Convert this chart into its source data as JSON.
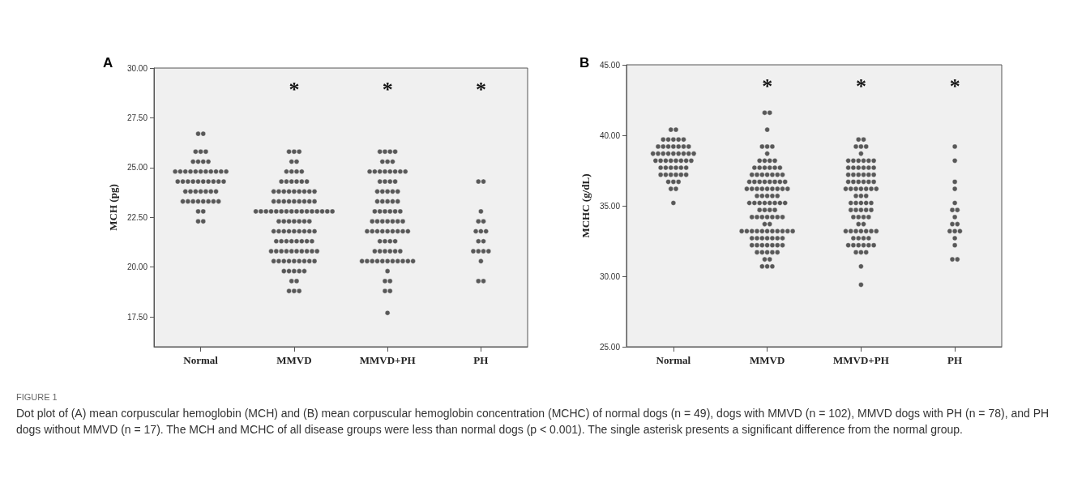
{
  "chart_data": [
    {
      "type": "scatter",
      "title": "A",
      "ylabel": "MCH (pg)",
      "categories": [
        "Normal",
        "MMVD",
        "MMVD+PH",
        "PH"
      ],
      "marker": "circle",
      "grid": false,
      "ylim": [
        16,
        30
      ],
      "yticks": [
        {
          "value": 17.5,
          "label": "17.50"
        },
        {
          "value": 20,
          "label": "20.00"
        },
        {
          "value": 22.5,
          "label": "22.50"
        },
        {
          "value": 25,
          "label": "25.00"
        },
        {
          "value": 27.5,
          "label": "27.50"
        },
        {
          "value": 30,
          "label": "30.00"
        }
      ],
      "series": [
        {
          "color": "#333333",
          "x": [
            "Normal",
            "Normal",
            "Normal",
            "Normal",
            "Normal",
            "Normal",
            "Normal",
            "Normal",
            "Normal",
            "Normal",
            "Normal",
            "Normal",
            "Normal",
            "Normal",
            "Normal",
            "Normal",
            "Normal",
            "Normal",
            "Normal",
            "Normal",
            "Normal",
            "Normal",
            "Normal",
            "Normal",
            "Normal",
            "Normal",
            "Normal",
            "Normal",
            "Normal",
            "Normal",
            "Normal",
            "Normal",
            "Normal",
            "Normal",
            "Normal",
            "Normal",
            "Normal",
            "Normal",
            "Normal",
            "Normal",
            "Normal",
            "Normal",
            "Normal",
            "Normal",
            "Normal",
            "Normal",
            "Normal",
            "Normal",
            "Normal"
          ],
          "values": [
            26.7,
            26.7,
            25.8,
            25.8,
            25.8,
            25.3,
            25.3,
            25.3,
            25.3,
            24.8,
            24.8,
            24.8,
            24.8,
            24.8,
            24.8,
            24.8,
            24.8,
            24.8,
            24.8,
            24.8,
            24.3,
            24.3,
            24.3,
            24.3,
            24.3,
            24.3,
            24.3,
            24.3,
            24.3,
            24.3,
            23.8,
            23.8,
            23.8,
            23.8,
            23.8,
            23.8,
            23.8,
            23.3,
            23.3,
            23.3,
            23.3,
            23.3,
            23.3,
            23.3,
            23.3,
            22.8,
            22.8,
            22.3,
            22.3
          ]
        },
        {
          "color": "#333333",
          "x": [
            "MMVD",
            "MMVD",
            "MMVD",
            "MMVD",
            "MMVD",
            "MMVD",
            "MMVD",
            "MMVD",
            "MMVD",
            "MMVD",
            "MMVD",
            "MMVD",
            "MMVD",
            "MMVD",
            "MMVD",
            "MMVD",
            "MMVD",
            "MMVD",
            "MMVD",
            "MMVD",
            "MMVD",
            "MMVD",
            "MMVD",
            "MMVD",
            "MMVD",
            "MMVD",
            "MMVD",
            "MMVD",
            "MMVD",
            "MMVD",
            "MMVD",
            "MMVD",
            "MMVD",
            "MMVD",
            "MMVD",
            "MMVD",
            "MMVD",
            "MMVD",
            "MMVD",
            "MMVD",
            "MMVD",
            "MMVD",
            "MMVD",
            "MMVD",
            "MMVD",
            "MMVD",
            "MMVD",
            "MMVD",
            "MMVD",
            "MMVD",
            "MMVD",
            "MMVD",
            "MMVD",
            "MMVD",
            "MMVD",
            "MMVD",
            "MMVD",
            "MMVD",
            "MMVD",
            "MMVD",
            "MMVD",
            "MMVD",
            "MMVD",
            "MMVD",
            "MMVD",
            "MMVD",
            "MMVD",
            "MMVD",
            "MMVD",
            "MMVD",
            "MMVD",
            "MMVD",
            "MMVD",
            "MMVD",
            "MMVD",
            "MMVD",
            "MMVD",
            "MMVD",
            "MMVD",
            "MMVD",
            "MMVD",
            "MMVD",
            "MMVD",
            "MMVD",
            "MMVD",
            "MMVD",
            "MMVD",
            "MMVD",
            "MMVD",
            "MMVD",
            "MMVD",
            "MMVD",
            "MMVD",
            "MMVD",
            "MMVD",
            "MMVD",
            "MMVD",
            "MMVD",
            "MMVD",
            "MMVD",
            "MMVD",
            "MMVD"
          ],
          "values": [
            25.8,
            25.8,
            25.8,
            25.3,
            25.3,
            24.8,
            24.8,
            24.8,
            24.8,
            24.3,
            24.3,
            24.3,
            24.3,
            24.3,
            24.3,
            23.8,
            23.8,
            23.8,
            23.8,
            23.8,
            23.8,
            23.8,
            23.8,
            23.8,
            23.3,
            23.3,
            23.3,
            23.3,
            23.3,
            23.3,
            23.3,
            23.3,
            23.3,
            22.8,
            22.8,
            22.8,
            22.8,
            22.8,
            22.8,
            22.8,
            22.8,
            22.8,
            22.8,
            22.8,
            22.8,
            22.8,
            22.8,
            22.8,
            22.8,
            22.3,
            22.3,
            22.3,
            22.3,
            22.3,
            22.3,
            22.3,
            21.8,
            21.8,
            21.8,
            21.8,
            21.8,
            21.8,
            21.8,
            21.8,
            21.8,
            21.3,
            21.3,
            21.3,
            21.3,
            21.3,
            21.3,
            21.3,
            21.3,
            20.8,
            20.8,
            20.8,
            20.8,
            20.8,
            20.8,
            20.8,
            20.8,
            20.8,
            20.8,
            20.3,
            20.3,
            20.3,
            20.3,
            20.3,
            20.3,
            20.3,
            20.3,
            20.3,
            19.8,
            19.8,
            19.8,
            19.8,
            19.8,
            19.3,
            19.3,
            18.8,
            18.8,
            18.8
          ]
        },
        {
          "color": "#333333",
          "x": [
            "MMVD+PH",
            "MMVD+PH",
            "MMVD+PH",
            "MMVD+PH",
            "MMVD+PH",
            "MMVD+PH",
            "MMVD+PH",
            "MMVD+PH",
            "MMVD+PH",
            "MMVD+PH",
            "MMVD+PH",
            "MMVD+PH",
            "MMVD+PH",
            "MMVD+PH",
            "MMVD+PH",
            "MMVD+PH",
            "MMVD+PH",
            "MMVD+PH",
            "MMVD+PH",
            "MMVD+PH",
            "MMVD+PH",
            "MMVD+PH",
            "MMVD+PH",
            "MMVD+PH",
            "MMVD+PH",
            "MMVD+PH",
            "MMVD+PH",
            "MMVD+PH",
            "MMVD+PH",
            "MMVD+PH",
            "MMVD+PH",
            "MMVD+PH",
            "MMVD+PH",
            "MMVD+PH",
            "MMVD+PH",
            "MMVD+PH",
            "MMVD+PH",
            "MMVD+PH",
            "MMVD+PH",
            "MMVD+PH",
            "MMVD+PH",
            "MMVD+PH",
            "MMVD+PH",
            "MMVD+PH",
            "MMVD+PH",
            "MMVD+PH",
            "MMVD+PH",
            "MMVD+PH",
            "MMVD+PH",
            "MMVD+PH",
            "MMVD+PH",
            "MMVD+PH",
            "MMVD+PH",
            "MMVD+PH",
            "MMVD+PH",
            "MMVD+PH",
            "MMVD+PH",
            "MMVD+PH",
            "MMVD+PH",
            "MMVD+PH",
            "MMVD+PH",
            "MMVD+PH",
            "MMVD+PH",
            "MMVD+PH",
            "MMVD+PH",
            "MMVD+PH",
            "MMVD+PH",
            "MMVD+PH",
            "MMVD+PH",
            "MMVD+PH",
            "MMVD+PH",
            "MMVD+PH",
            "MMVD+PH",
            "MMVD+PH",
            "MMVD+PH",
            "MMVD+PH",
            "MMVD+PH",
            "MMVD+PH"
          ],
          "values": [
            25.8,
            25.8,
            25.8,
            25.8,
            25.3,
            25.3,
            25.3,
            24.8,
            24.8,
            24.8,
            24.8,
            24.8,
            24.8,
            24.8,
            24.8,
            24.3,
            24.3,
            24.3,
            24.3,
            23.8,
            23.8,
            23.8,
            23.8,
            23.8,
            23.3,
            23.3,
            23.3,
            23.3,
            23.3,
            22.8,
            22.8,
            22.8,
            22.8,
            22.8,
            22.8,
            22.3,
            22.3,
            22.3,
            22.3,
            22.3,
            22.3,
            22.3,
            21.8,
            21.8,
            21.8,
            21.8,
            21.8,
            21.8,
            21.8,
            21.8,
            21.8,
            21.3,
            21.3,
            21.3,
            21.3,
            20.8,
            20.8,
            20.8,
            20.8,
            20.8,
            20.8,
            20.3,
            20.3,
            20.3,
            20.3,
            20.3,
            20.3,
            20.3,
            20.3,
            20.3,
            20.3,
            20.3,
            19.8,
            19.3,
            19.3,
            18.8,
            18.8,
            17.7
          ]
        },
        {
          "color": "#333333",
          "x": [
            "PH",
            "PH",
            "PH",
            "PH",
            "PH",
            "PH",
            "PH",
            "PH",
            "PH",
            "PH",
            "PH",
            "PH",
            "PH",
            "PH",
            "PH",
            "PH",
            "PH"
          ],
          "values": [
            24.3,
            24.3,
            22.8,
            22.3,
            22.3,
            21.8,
            21.8,
            21.8,
            21.3,
            21.3,
            20.8,
            20.8,
            20.8,
            20.8,
            20.3,
            19.3,
            19.3
          ]
        }
      ],
      "annotations": [
        "*",
        "*",
        "*",
        "FIGURE 1",
        "Dot plot of (A) mean corpuscular hemoglobin (MCH) and (B) mean corpuscular hemoglobin concentration (MCHC) of normal dogs (n = 49), dogs with MMVD (n = 102), MMVD dogs with PH (n = 78), and PH dogs without MMVD (n = 17). The MCH and MCHC of all disease groups were less than normal dogs (p < 0.001). The single asterisk presents a significant difference from the normal group."
      ]
    },
    {
      "type": "scatter",
      "title": "B",
      "ylabel": "MCHC (g/dL)",
      "categories": [
        "Normal",
        "MMVD",
        "MMVD+PH",
        "PH"
      ],
      "marker": "circle",
      "grid": false,
      "ylim": [
        25,
        45
      ],
      "yticks": [
        {
          "value": 25,
          "label": "25.00"
        },
        {
          "value": 30,
          "label": "30.00"
        },
        {
          "value": 35,
          "label": "35.00"
        },
        {
          "value": 40,
          "label": "40.00"
        },
        {
          "value": 45,
          "label": "45.00"
        }
      ],
      "series": [
        {
          "color": "#333333",
          "x": [
            "Normal",
            "Normal",
            "Normal",
            "Normal",
            "Normal",
            "Normal",
            "Normal",
            "Normal",
            "Normal",
            "Normal",
            "Normal",
            "Normal",
            "Normal",
            "Normal",
            "Normal",
            "Normal",
            "Normal",
            "Normal",
            "Normal",
            "Normal",
            "Normal",
            "Normal",
            "Normal",
            "Normal",
            "Normal",
            "Normal",
            "Normal",
            "Normal",
            "Normal",
            "Normal",
            "Normal",
            "Normal",
            "Normal",
            "Normal",
            "Normal",
            "Normal",
            "Normal",
            "Normal",
            "Normal",
            "Normal",
            "Normal",
            "Normal",
            "Normal",
            "Normal",
            "Normal",
            "Normal",
            "Normal",
            "Normal",
            "Normal"
          ],
          "values": [
            40.4,
            40.4,
            39.7,
            39.7,
            39.7,
            39.7,
            39.7,
            39.2,
            39.2,
            39.2,
            39.2,
            39.2,
            39.2,
            39.2,
            38.7,
            38.7,
            38.7,
            38.7,
            38.7,
            38.7,
            38.7,
            38.7,
            38.7,
            38.2,
            38.2,
            38.2,
            38.2,
            38.2,
            38.2,
            38.2,
            38.2,
            37.7,
            37.7,
            37.7,
            37.7,
            37.7,
            37.7,
            37.2,
            37.2,
            37.2,
            37.2,
            37.2,
            37.2,
            36.7,
            36.7,
            36.7,
            36.2,
            36.2,
            35.2
          ]
        },
        {
          "color": "#333333",
          "x": [
            "MMVD",
            "MMVD",
            "MMVD",
            "MMVD",
            "MMVD",
            "MMVD",
            "MMVD",
            "MMVD",
            "MMVD",
            "MMVD",
            "MMVD",
            "MMVD",
            "MMVD",
            "MMVD",
            "MMVD",
            "MMVD",
            "MMVD",
            "MMVD",
            "MMVD",
            "MMVD",
            "MMVD",
            "MMVD",
            "MMVD",
            "MMVD",
            "MMVD",
            "MMVD",
            "MMVD",
            "MMVD",
            "MMVD",
            "MMVD",
            "MMVD",
            "MMVD",
            "MMVD",
            "MMVD",
            "MMVD",
            "MMVD",
            "MMVD",
            "MMVD",
            "MMVD",
            "MMVD",
            "MMVD",
            "MMVD",
            "MMVD",
            "MMVD",
            "MMVD",
            "MMVD",
            "MMVD",
            "MMVD",
            "MMVD",
            "MMVD",
            "MMVD",
            "MMVD",
            "MMVD",
            "MMVD",
            "MMVD",
            "MMVD",
            "MMVD",
            "MMVD",
            "MMVD",
            "MMVD",
            "MMVD",
            "MMVD",
            "MMVD",
            "MMVD",
            "MMVD",
            "MMVD",
            "MMVD",
            "MMVD",
            "MMVD",
            "MMVD",
            "MMVD",
            "MMVD",
            "MMVD",
            "MMVD",
            "MMVD",
            "MMVD",
            "MMVD",
            "MMVD",
            "MMVD",
            "MMVD",
            "MMVD",
            "MMVD",
            "MMVD",
            "MMVD",
            "MMVD",
            "MMVD",
            "MMVD",
            "MMVD",
            "MMVD",
            "MMVD",
            "MMVD",
            "MMVD",
            "MMVD",
            "MMVD",
            "MMVD",
            "MMVD",
            "MMVD",
            "MMVD",
            "MMVD",
            "MMVD",
            "MMVD",
            "MMVD"
          ],
          "values": [
            41.6,
            41.6,
            40.4,
            39.2,
            39.2,
            39.2,
            38.7,
            38.2,
            38.2,
            38.2,
            38.2,
            37.7,
            37.7,
            37.7,
            37.7,
            37.7,
            37.7,
            37.2,
            37.2,
            37.2,
            37.2,
            37.2,
            37.2,
            37.2,
            36.7,
            36.7,
            36.7,
            36.7,
            36.7,
            36.7,
            36.7,
            36.7,
            36.2,
            36.2,
            36.2,
            36.2,
            36.2,
            36.2,
            36.2,
            36.2,
            36.2,
            35.7,
            35.7,
            35.7,
            35.7,
            35.7,
            35.2,
            35.2,
            35.2,
            35.2,
            35.2,
            35.2,
            35.2,
            35.2,
            34.7,
            34.7,
            34.7,
            34.7,
            34.2,
            34.2,
            34.2,
            34.2,
            34.2,
            34.2,
            34.2,
            33.7,
            33.7,
            33.2,
            33.2,
            33.2,
            33.2,
            33.2,
            33.2,
            33.2,
            33.2,
            33.2,
            33.2,
            33.2,
            32.7,
            32.7,
            32.7,
            32.7,
            32.7,
            32.7,
            32.7,
            32.2,
            32.2,
            32.2,
            32.2,
            32.2,
            32.2,
            32.2,
            31.7,
            31.7,
            31.7,
            31.7,
            31.7,
            31.2,
            31.2,
            30.7,
            30.7,
            30.7
          ]
        },
        {
          "color": "#333333",
          "x": [
            "MMVD+PH",
            "MMVD+PH",
            "MMVD+PH",
            "MMVD+PH",
            "MMVD+PH",
            "MMVD+PH",
            "MMVD+PH",
            "MMVD+PH",
            "MMVD+PH",
            "MMVD+PH",
            "MMVD+PH",
            "MMVD+PH",
            "MMVD+PH",
            "MMVD+PH",
            "MMVD+PH",
            "MMVD+PH",
            "MMVD+PH",
            "MMVD+PH",
            "MMVD+PH",
            "MMVD+PH",
            "MMVD+PH",
            "MMVD+PH",
            "MMVD+PH",
            "MMVD+PH",
            "MMVD+PH",
            "MMVD+PH",
            "MMVD+PH",
            "MMVD+PH",
            "MMVD+PH",
            "MMVD+PH",
            "MMVD+PH",
            "MMVD+PH",
            "MMVD+PH",
            "MMVD+PH",
            "MMVD+PH",
            "MMVD+PH",
            "MMVD+PH",
            "MMVD+PH",
            "MMVD+PH",
            "MMVD+PH",
            "MMVD+PH",
            "MMVD+PH",
            "MMVD+PH",
            "MMVD+PH",
            "MMVD+PH",
            "MMVD+PH",
            "MMVD+PH",
            "MMVD+PH",
            "MMVD+PH",
            "MMVD+PH",
            "MMVD+PH",
            "MMVD+PH",
            "MMVD+PH",
            "MMVD+PH",
            "MMVD+PH",
            "MMVD+PH",
            "MMVD+PH",
            "MMVD+PH",
            "MMVD+PH",
            "MMVD+PH",
            "MMVD+PH",
            "MMVD+PH",
            "MMVD+PH",
            "MMVD+PH",
            "MMVD+PH",
            "MMVD+PH",
            "MMVD+PH",
            "MMVD+PH",
            "MMVD+PH",
            "MMVD+PH",
            "MMVD+PH",
            "MMVD+PH",
            "MMVD+PH",
            "MMVD+PH",
            "MMVD+PH",
            "MMVD+PH",
            "MMVD+PH",
            "MMVD+PH"
          ],
          "values": [
            39.7,
            39.7,
            39.2,
            39.2,
            39.2,
            38.7,
            38.2,
            38.2,
            38.2,
            38.2,
            38.2,
            38.2,
            37.7,
            37.7,
            37.7,
            37.7,
            37.7,
            37.7,
            37.2,
            37.2,
            37.2,
            37.2,
            37.2,
            37.2,
            36.7,
            36.7,
            36.7,
            36.7,
            36.7,
            36.7,
            36.2,
            36.2,
            36.2,
            36.2,
            36.2,
            36.2,
            36.2,
            35.7,
            35.7,
            35.7,
            35.2,
            35.2,
            35.2,
            35.2,
            35.2,
            34.7,
            34.7,
            34.7,
            34.7,
            34.7,
            34.2,
            34.2,
            34.2,
            34.2,
            33.7,
            33.7,
            33.2,
            33.2,
            33.2,
            33.2,
            33.2,
            33.2,
            33.2,
            32.7,
            32.7,
            32.7,
            32.7,
            32.2,
            32.2,
            32.2,
            32.2,
            32.2,
            32.2,
            31.7,
            31.7,
            31.7,
            30.7,
            29.4
          ]
        },
        {
          "color": "#333333",
          "x": [
            "PH",
            "PH",
            "PH",
            "PH",
            "PH",
            "PH",
            "PH",
            "PH",
            "PH",
            "PH",
            "PH",
            "PH",
            "PH",
            "PH",
            "PH",
            "PH",
            "PH"
          ],
          "values": [
            39.2,
            38.2,
            36.7,
            36.2,
            35.2,
            34.7,
            34.7,
            34.2,
            33.7,
            33.7,
            33.2,
            33.2,
            33.2,
            32.7,
            32.2,
            31.2,
            31.2
          ]
        }
      ],
      "annotations": [
        "*",
        "*",
        "*"
      ]
    }
  ]
}
